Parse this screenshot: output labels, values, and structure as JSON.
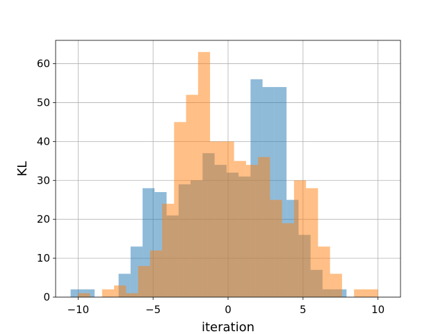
{
  "chart_data": {
    "type": "bar",
    "subtype": "overlaid-histogram",
    "title": "",
    "xlabel": "iteration",
    "ylabel": "KL",
    "xlim": [
      -11.5,
      11.5
    ],
    "ylim": [
      0,
      66
    ],
    "grid": true,
    "legend": "none",
    "x_ticks": [
      -10,
      -5,
      0,
      5,
      10
    ],
    "y_ticks": [
      0,
      10,
      20,
      30,
      40,
      50,
      60
    ],
    "series": [
      {
        "color": "#1f77b4",
        "alpha": 0.5,
        "bin_width": 0.8,
        "bins": [
          {
            "x0": -10.5,
            "count": 2
          },
          {
            "x0": -9.7,
            "count": 2
          },
          {
            "x0": -8.9,
            "count": 0
          },
          {
            "x0": -8.1,
            "count": 0
          },
          {
            "x0": -7.3,
            "count": 6
          },
          {
            "x0": -6.5,
            "count": 13
          },
          {
            "x0": -5.7,
            "count": 28
          },
          {
            "x0": -4.9,
            "count": 27
          },
          {
            "x0": -4.1,
            "count": 21
          },
          {
            "x0": -3.3,
            "count": 29
          },
          {
            "x0": -2.5,
            "count": 30
          },
          {
            "x0": -1.7,
            "count": 37
          },
          {
            "x0": -0.9,
            "count": 34
          },
          {
            "x0": -0.1,
            "count": 32
          },
          {
            "x0": 0.7,
            "count": 31
          },
          {
            "x0": 1.5,
            "count": 56
          },
          {
            "x0": 2.3,
            "count": 54
          },
          {
            "x0": 3.1,
            "count": 54
          },
          {
            "x0": 3.9,
            "count": 25
          },
          {
            "x0": 4.7,
            "count": 16
          },
          {
            "x0": 5.5,
            "count": 7
          },
          {
            "x0": 6.3,
            "count": 2
          },
          {
            "x0": 7.1,
            "count": 2
          }
        ]
      },
      {
        "color": "#ff7f0e",
        "alpha": 0.5,
        "bin_width": 0.8,
        "bins": [
          {
            "x0": -10.0,
            "count": 1
          },
          {
            "x0": -9.2,
            "count": 0
          },
          {
            "x0": -8.4,
            "count": 2
          },
          {
            "x0": -7.6,
            "count": 3
          },
          {
            "x0": -6.8,
            "count": 1
          },
          {
            "x0": -6.0,
            "count": 8
          },
          {
            "x0": -5.2,
            "count": 12
          },
          {
            "x0": -4.4,
            "count": 24
          },
          {
            "x0": -3.6,
            "count": 45
          },
          {
            "x0": -2.8,
            "count": 52
          },
          {
            "x0": -2.0,
            "count": 63
          },
          {
            "x0": -1.2,
            "count": 40
          },
          {
            "x0": -0.4,
            "count": 40
          },
          {
            "x0": 0.4,
            "count": 35
          },
          {
            "x0": 1.2,
            "count": 34
          },
          {
            "x0": 2.0,
            "count": 36
          },
          {
            "x0": 2.8,
            "count": 25
          },
          {
            "x0": 3.6,
            "count": 19
          },
          {
            "x0": 4.4,
            "count": 30
          },
          {
            "x0": 5.2,
            "count": 28
          },
          {
            "x0": 6.0,
            "count": 13
          },
          {
            "x0": 6.8,
            "count": 6
          },
          {
            "x0": 7.6,
            "count": 0
          },
          {
            "x0": 8.4,
            "count": 2
          },
          {
            "x0": 9.2,
            "count": 2
          }
        ]
      }
    ]
  }
}
